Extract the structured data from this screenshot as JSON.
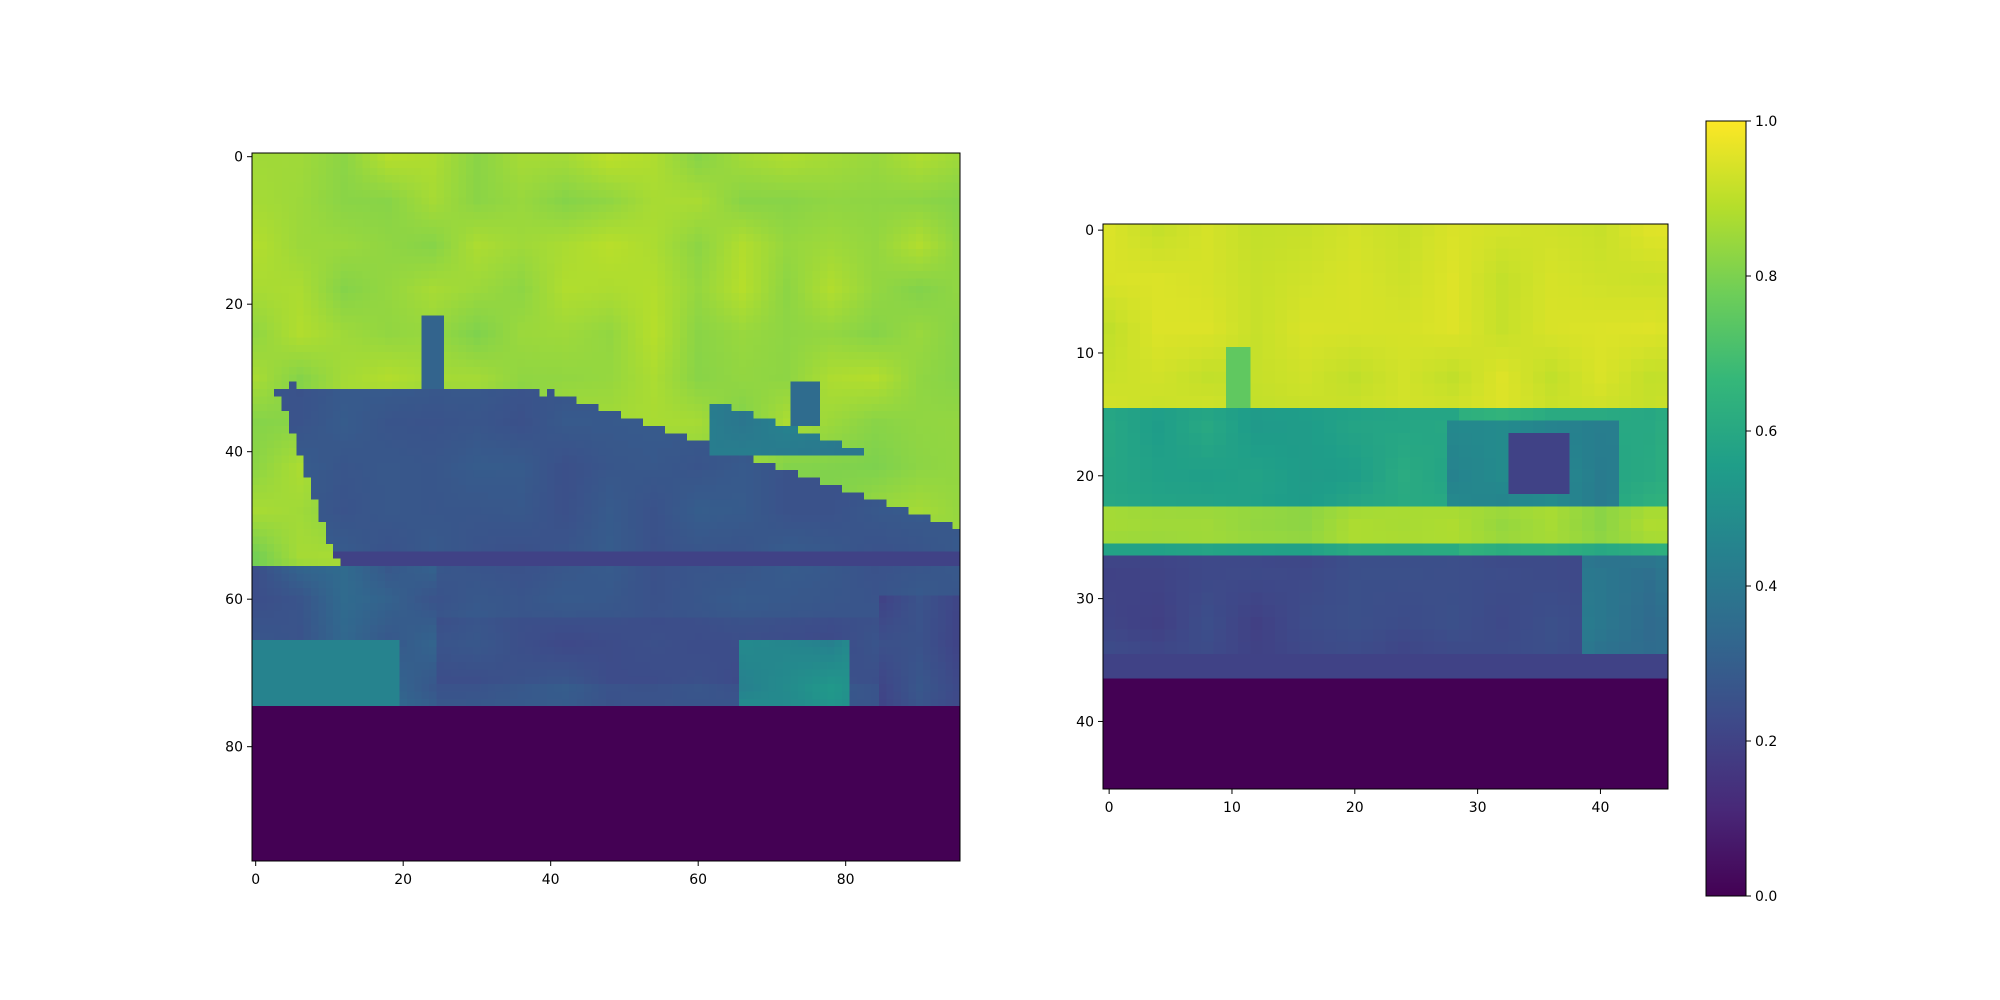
{
  "chart_data": [
    {
      "type": "heatmap",
      "title": "",
      "xlabel": "",
      "ylabel": "",
      "grid": false,
      "colormap": "viridis",
      "shape": [
        96,
        96
      ],
      "xlim": [
        -0.5,
        95.5
      ],
      "ylim": [
        95.5,
        -0.5
      ],
      "xticks": [
        0,
        20,
        40,
        60,
        80
      ],
      "yticks": [
        0,
        20,
        40,
        60,
        80
      ],
      "content": "grayscale ship photo rendered with viridis colormap; bright sky, dark hull, dark zero-padded band from row 75 down",
      "region_values": {
        "sky": 0.88,
        "hull": 0.28,
        "superstructure": 0.45,
        "harbor": 0.33,
        "padding_bottom": 0.0
      }
    },
    {
      "type": "heatmap",
      "title": "",
      "xlabel": "",
      "ylabel": "",
      "grid": false,
      "colormap": "viridis",
      "shape": [
        46,
        46
      ],
      "xlim": [
        -0.5,
        45.5
      ],
      "ylim": [
        45.5,
        -0.5
      ],
      "xticks": [
        0,
        10,
        20,
        30,
        40
      ],
      "yticks": [
        0,
        10,
        20,
        30,
        40
      ],
      "content": "downsampled/blurred ship image with viridis colormap; bright sky, teal upper hull, dark lower hull, dark padded band from row 37 down",
      "region_values": {
        "sky": 0.95,
        "upper_hull": 0.55,
        "lower_hull": 0.22,
        "padding_bottom": 0.0
      }
    }
  ],
  "colorbar": {
    "colormap": "viridis",
    "range": [
      0.0,
      1.0
    ],
    "ticks": [
      "0.0",
      "0.2",
      "0.4",
      "0.6",
      "0.8",
      "1.0"
    ]
  },
  "colors": {
    "viridis_stops": [
      "#440154",
      "#482878",
      "#3e4989",
      "#31688e",
      "#26828e",
      "#1f9e89",
      "#35b779",
      "#6ece58",
      "#b5de2b",
      "#fde725"
    ]
  }
}
